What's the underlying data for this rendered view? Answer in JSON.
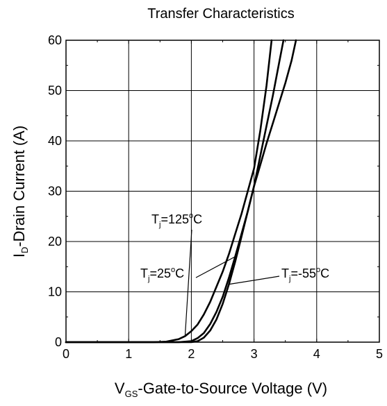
{
  "chart_data": {
    "type": "line",
    "title": "Transfer Characteristics",
    "xlabel": {
      "main": "V",
      "sub": "GS",
      "rest": "-Gate-to-Source Voltage (V)"
    },
    "ylabel": {
      "main": "I",
      "sub": "D",
      "rest": "-Drain Current (A)"
    },
    "xlim": [
      0,
      5
    ],
    "ylim": [
      0,
      60
    ],
    "xticks": [
      "0",
      "1",
      "2",
      "3",
      "4",
      "5"
    ],
    "yticks": [
      "0",
      "10",
      "20",
      "30",
      "40",
      "50",
      "60"
    ],
    "grid": true,
    "series": [
      {
        "name": {
          "main": "T",
          "sub": "j",
          "rest": "=125",
          "sup": "o",
          "end": "C"
        },
        "x": [
          0,
          1.4,
          1.6,
          1.8,
          1.9,
          2.0,
          2.1,
          2.2,
          2.3,
          2.4,
          2.5,
          2.6,
          2.7,
          2.8,
          2.9,
          3.0,
          3.1,
          3.2,
          3.28
        ],
        "y": [
          0,
          0,
          0.1,
          0.6,
          1.2,
          2.2,
          3.5,
          5.5,
          8,
          11,
          14,
          17.5,
          21.5,
          25.5,
          30,
          34.5,
          42,
          51,
          60
        ]
      },
      {
        "name": {
          "main": "T",
          "sub": "j",
          "rest": "=25",
          "sup": "o",
          "end": "C"
        },
        "x": [
          0,
          1.8,
          2.0,
          2.1,
          2.2,
          2.3,
          2.4,
          2.5,
          2.6,
          2.7,
          2.8,
          2.9,
          3.0,
          3.1,
          3.2,
          3.3,
          3.4,
          3.47
        ],
        "y": [
          0,
          0,
          0.2,
          0.8,
          1.8,
          3.6,
          6,
          9,
          12.8,
          17,
          21.5,
          26,
          31,
          37,
          43,
          49,
          55.5,
          60
        ]
      },
      {
        "name": {
          "main": "T",
          "sub": "j",
          "rest": "=-55",
          "sup": "o",
          "end": "C"
        },
        "x": [
          0,
          2.0,
          2.1,
          2.2,
          2.3,
          2.4,
          2.5,
          2.6,
          2.7,
          2.8,
          2.9,
          3.0,
          3.1,
          3.2,
          3.3,
          3.4,
          3.5,
          3.6,
          3.67
        ],
        "y": [
          0,
          0,
          0.2,
          0.9,
          2.3,
          4.5,
          7.6,
          11.5,
          16,
          21,
          26,
          31,
          35.2,
          39.5,
          43.5,
          47.5,
          51.5,
          56,
          60
        ]
      }
    ]
  }
}
